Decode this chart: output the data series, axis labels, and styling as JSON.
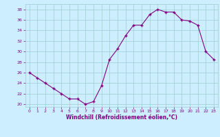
{
  "x": [
    0,
    1,
    2,
    3,
    4,
    5,
    6,
    7,
    8,
    9,
    10,
    11,
    12,
    13,
    14,
    15,
    16,
    17,
    18,
    19,
    20,
    21,
    22,
    23
  ],
  "y": [
    26,
    25,
    24,
    23,
    22,
    21,
    21,
    20,
    20.5,
    23.5,
    28.5,
    30.5,
    33,
    35,
    35,
    37,
    38,
    37.5,
    37.5,
    36,
    35.8,
    35,
    30,
    28.5
  ],
  "line_color": "#800080",
  "marker_color": "#800080",
  "bg_color": "#cceeff",
  "grid_color": "#9ecece",
  "xlabel": "Windchill (Refroidissement éolien,°C)",
  "xlim": [
    -0.5,
    23.5
  ],
  "ylim": [
    19.5,
    39
  ],
  "yticks": [
    20,
    22,
    24,
    26,
    28,
    30,
    32,
    34,
    36,
    38
  ],
  "xticks": [
    0,
    1,
    2,
    3,
    4,
    5,
    6,
    7,
    8,
    9,
    10,
    11,
    12,
    13,
    14,
    15,
    16,
    17,
    18,
    19,
    20,
    21,
    22,
    23
  ],
  "tick_color": "#800080",
  "label_color": "#800080",
  "spine_color": "#9ecece"
}
